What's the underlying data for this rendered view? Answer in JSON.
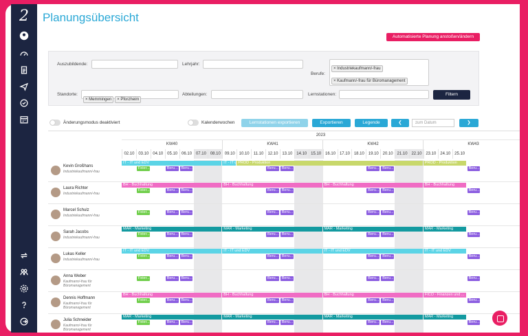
{
  "header": {
    "title": "Planungsübersicht",
    "auto_button": "Automatisierte Planung anstoßen/ändern"
  },
  "filters": {
    "auszubildende_label": "Auszubildende:",
    "lehrjahr_label": "Lehrjahr:",
    "berufe_label": "Berufe:",
    "berufe_chips": [
      "Industriekaufmann/-frau",
      "Kaufmann/-frau für Büromanagement"
    ],
    "standorte_label": "Standorte:",
    "standorte_chips": [
      "Memmingen",
      "Pforzheim"
    ],
    "abteilungen_label": "Abteilungen:",
    "lernstationen_label": "Lernstationen:",
    "filter_button": "Filtern"
  },
  "controls": {
    "aenderungsmodus": "Änderungsmodus deaktiviert",
    "kalenderwochen": "Kalenderwochen",
    "export_lernstationen": "Lernstationen exportieren",
    "exportieren": "Exportieren",
    "legende": "Legende",
    "date_placeholder": "zum Datum",
    "prev": "❮",
    "next": "❯"
  },
  "calendar": {
    "year": "2023",
    "weeks": [
      "KW40",
      "KW41",
      "KW42",
      "KW43"
    ],
    "days": [
      "02.10",
      "03.10",
      "04.10",
      "05.10",
      "06.10",
      "07.10",
      "08.10",
      "09.10",
      "10.10",
      "11.10",
      "12.10",
      "13.10",
      "14.10",
      "15.10",
      "16.10",
      "17.10",
      "18.10",
      "19.10",
      "20.10",
      "21.10",
      "22.10",
      "23.10",
      "24.10",
      "25.10"
    ],
    "weekend_index": [
      5,
      6,
      12,
      13,
      19,
      20
    ]
  },
  "people": [
    {
      "name": "Kevin Großhans",
      "role": "Industriekaufmann/-frau"
    },
    {
      "name": "Laura Richter",
      "role": "Industriekaufmann/-frau"
    },
    {
      "name": "Marcel Schulz",
      "role": "Industriekaufmann/-frau"
    },
    {
      "name": "Sarah Jacobs",
      "role": "Industriekaufmann/-frau"
    },
    {
      "name": "Lukas Keller",
      "role": "Industriekaufmann/-frau"
    },
    {
      "name": "Anna Weber",
      "role": "Kaufmann/-frau für Büromanagement"
    },
    {
      "name": "Dennis Hoffmann",
      "role": "Kaufmann/-frau für Büromanagement"
    },
    {
      "name": "Julia Schneider",
      "role": "Kaufmann/-frau für Büromanagement"
    }
  ],
  "labels": {
    "it": "IT - IT und EDV",
    "bh": "BH - Buchhaltung",
    "mar": "MAR - Marketing",
    "prod": "PROD - Produktion",
    "fico": "FICO - Finanzen und ...",
    "feier": "Feier...",
    "beru": "Beru...",
    "it_short": "IT - IT und EDV"
  },
  "colors": {
    "it": "#5bd4e6",
    "bh": "#f06cc4",
    "mar": "#139aa0",
    "prod": "#c8d86b",
    "feier": "#6fce4a",
    "beru": "#8a5be0",
    "accent": "#2aa8d6",
    "brand": "#e91e63",
    "navy": "#1c2541"
  }
}
